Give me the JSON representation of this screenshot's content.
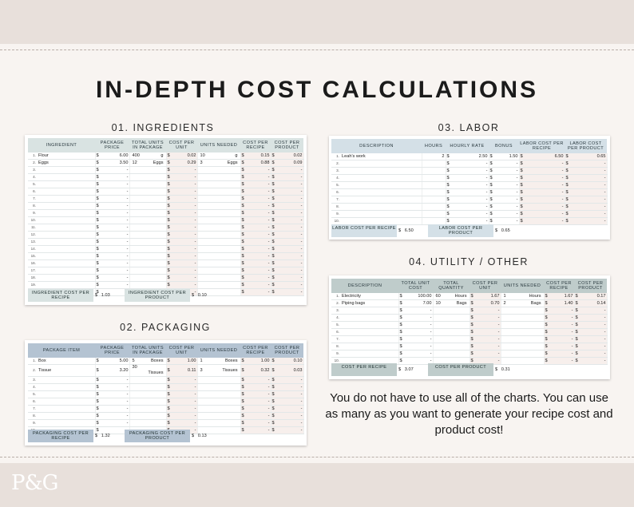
{
  "title": "IN-DEPTH COST CALCULATIONS",
  "brand": "P&G",
  "ingredients": {
    "heading": "01. INGREDIENTS",
    "headers": [
      "INGREDIENT",
      "PACKAGE PRICE",
      "TOTAL UNITS IN PACKAGE",
      "COST PER UNIT",
      "UNITS NEEDED",
      "COST PER RECIPE",
      "COST PER PRODUCT"
    ],
    "rows": [
      [
        "Flour",
        "6.00",
        "400",
        "g",
        "0.02",
        "10",
        "g",
        "0.15",
        "0.02"
      ],
      [
        "Eggs",
        "3.50",
        "12",
        "Eggs",
        "0.29",
        "3",
        "Eggs",
        "0.88",
        "0.09"
      ]
    ],
    "row_count": 20,
    "summary": [
      {
        "label": "INGREDIENT COST PER RECIPE",
        "value": "1.03"
      },
      {
        "label": "INGREDIENT COST PER PRODUCT",
        "value": "0.10"
      }
    ]
  },
  "packaging": {
    "heading": "02. PACKAGING",
    "headers": [
      "PACKAGE ITEM",
      "PACKAGE PRICE",
      "TOTAL UNITS IN PACKAGE",
      "COST PER UNIT",
      "UNITS NEEDED",
      "COST PER RECIPE",
      "COST PER PRODUCT"
    ],
    "rows": [
      [
        "Box",
        "5.00",
        "5",
        "Boxes",
        "1.00",
        "1",
        "Boxes",
        "1.00",
        "0.10"
      ],
      [
        "Tissue",
        "3.20",
        "30",
        "Tissues",
        "0.11",
        "3",
        "Tissues",
        "0.32",
        "0.03"
      ]
    ],
    "row_count": 10,
    "summary": [
      {
        "label": "PACKAGING COST PER RECIPE",
        "value": "1.32"
      },
      {
        "label": "PACKAGING COST PER PRODUCT",
        "value": "0.13"
      }
    ]
  },
  "labor": {
    "heading": "03. LABOR",
    "headers": [
      "DESCRIPTION",
      "HOURS",
      "HOURLY RATE",
      "BONUS",
      "LABOR COST PER RECIPE",
      "LABOR COST PER PRODUCT"
    ],
    "rows": [
      [
        "Leah's work",
        "2",
        "2.50",
        "1.50",
        "6.50",
        "0.65"
      ]
    ],
    "row_count": 10,
    "summary": [
      {
        "label": "LABOR COST PER RECIPE",
        "value": "6.50"
      },
      {
        "label": "LABOR COST PER PRODUCT",
        "value": "0.65"
      }
    ]
  },
  "utility": {
    "heading": "04. UTILITY / OTHER",
    "headers": [
      "DESCRIPTION",
      "TOTAL UNIT COST",
      "TOTAL QUANTITY",
      "COST PER UNIT",
      "UNITS NEEDED",
      "COST PER RECIPE",
      "COST PER PRODUCT"
    ],
    "rows": [
      [
        "Electricity",
        "100.00",
        "60",
        "Hours",
        "1.67",
        "1",
        "Hours",
        "1.67",
        "0.17"
      ],
      [
        "Piping bags",
        "7.00",
        "10",
        "Bags",
        "0.70",
        "2",
        "Bags",
        "1.40",
        "0.14"
      ]
    ],
    "row_count": 10,
    "summary": [
      {
        "label": "COST PER RECIPE",
        "value": "3.07"
      },
      {
        "label": "COST PER PRODUCT",
        "value": "0.31"
      }
    ]
  },
  "currency": "$",
  "empty": "-",
  "note": "You do not have to use all of the charts. You can use as many as you want to generate your recipe cost and product cost!"
}
